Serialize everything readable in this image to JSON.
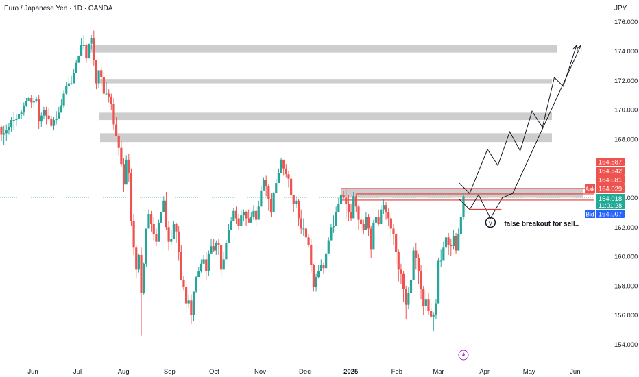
{
  "chart_data": {
    "type": "candlestick",
    "title": "Euro / Japanese Yen · 1D · OANDA",
    "currency": "JPY",
    "ylim": [
      153.5,
      177.5
    ],
    "y_ticks": [
      "176.000",
      "174.000",
      "172.000",
      "170.000",
      "168.000",
      "164.000",
      "162.000",
      "160.000",
      "158.000",
      "156.000",
      "154.000"
    ],
    "x_ticks": [
      "Jun",
      "Jul",
      "Aug",
      "Sep",
      "Oct",
      "Nov",
      "Dec",
      "2025",
      "Feb",
      "Mar",
      "Apr",
      "May",
      "Jun"
    ],
    "colors": {
      "up": "#26a69a",
      "down": "#ef5350",
      "zone": "#c9c9c9",
      "level": "#e53935",
      "ask": "#ef5350",
      "bid": "#2962ff",
      "last": "#22ab94"
    },
    "zones": [
      {
        "low": 173.9,
        "high": 174.4
      },
      {
        "low": 171.8,
        "high": 172.1
      },
      {
        "low": 169.3,
        "high": 169.8
      },
      {
        "low": 167.8,
        "high": 168.4
      },
      {
        "low": 164.0,
        "high": 164.6
      }
    ],
    "key_level": 164.4,
    "prices": {
      "ask_label": "Ask",
      "ask": "164.029",
      "bid_label": "Bid",
      "bid": "164.007",
      "last": "164.018",
      "countdown": "11:01:28",
      "levels": [
        "164.887",
        "164.542",
        "164.081"
      ]
    },
    "path_points": [
      [
        "2025-03-15",
        165.0
      ],
      [
        "2025-03-22",
        164.3
      ],
      [
        "2025-04-03",
        167.3
      ],
      [
        "2025-04-10",
        166.2
      ],
      [
        "2025-04-18",
        168.5
      ],
      [
        "2025-04-25",
        167.2
      ],
      [
        "2025-05-03",
        169.9
      ],
      [
        "2025-05-10",
        168.8
      ],
      [
        "2025-05-18",
        172.2
      ],
      [
        "2025-05-24",
        171.6
      ],
      [
        "2025-06-02",
        174.4
      ]
    ],
    "alt_path_points": [
      [
        "2025-03-15",
        163.9
      ],
      [
        "2025-03-22",
        163.2
      ],
      [
        "2025-03-28",
        164.2
      ],
      [
        "2025-04-05",
        162.6
      ],
      [
        "2025-04-13",
        164.0
      ],
      [
        "2025-04-20",
        164.3
      ],
      [
        "2025-06-05",
        174.4
      ]
    ],
    "annotation": "false breakout for sell..",
    "candles": [
      [
        168.8,
        168.3,
        168.9,
        167.9
      ],
      [
        168.3,
        168.4,
        168.9,
        167.6
      ],
      [
        168.4,
        168.6,
        169.0,
        167.9
      ],
      [
        168.6,
        168.8,
        169.1,
        168.3
      ],
      [
        168.8,
        169.3,
        169.5,
        168.5
      ],
      [
        169.3,
        169.3,
        169.8,
        168.6
      ],
      [
        169.3,
        169.4,
        169.7,
        168.9
      ],
      [
        169.4,
        169.7,
        170.3,
        169.2
      ],
      [
        169.7,
        169.8,
        170.0,
        169.4
      ],
      [
        169.8,
        170.3,
        170.5,
        169.6
      ],
      [
        170.3,
        170.6,
        170.8,
        170.2
      ],
      [
        170.6,
        170.8,
        170.9,
        170.6
      ],
      [
        170.8,
        170.5,
        171.0,
        170.1
      ],
      [
        170.5,
        170.6,
        170.9,
        170.1
      ],
      [
        170.6,
        170.7,
        170.9,
        170.5
      ],
      [
        170.7,
        169.2,
        171.0,
        168.7
      ],
      [
        169.2,
        169.6,
        169.8,
        168.8
      ],
      [
        169.6,
        170.0,
        170.2,
        169.4
      ],
      [
        170.0,
        169.6,
        170.2,
        169.0
      ],
      [
        169.6,
        169.4,
        170.1,
        169.3
      ],
      [
        169.4,
        168.9,
        169.6,
        168.8
      ],
      [
        168.9,
        169.3,
        169.5,
        168.6
      ],
      [
        169.3,
        169.4,
        169.9,
        169.0
      ],
      [
        169.4,
        169.8,
        170.2,
        169.5
      ],
      [
        169.8,
        170.3,
        170.7,
        170.0
      ],
      [
        170.3,
        171.1,
        171.3,
        170.1
      ],
      [
        171.1,
        171.6,
        171.9,
        171.0
      ],
      [
        171.6,
        171.8,
        172.2,
        171.6
      ],
      [
        171.8,
        171.8,
        172.3,
        171.7
      ],
      [
        171.8,
        172.5,
        172.8,
        172.5
      ],
      [
        172.5,
        173.2,
        173.4,
        172.9
      ],
      [
        173.2,
        173.7,
        173.7,
        173.2
      ],
      [
        173.7,
        174.4,
        174.9,
        173.9
      ],
      [
        174.4,
        174.4,
        175.1,
        174.1
      ],
      [
        174.4,
        173.5,
        174.5,
        173.2
      ],
      [
        173.5,
        174.5,
        174.5,
        174.3
      ],
      [
        174.5,
        174.9,
        175.1,
        174.1
      ],
      [
        174.9,
        173.4,
        175.4,
        173.0
      ],
      [
        173.4,
        171.8,
        173.3,
        171.4
      ],
      [
        171.8,
        172.7,
        172.6,
        171.5
      ],
      [
        172.7,
        172.2,
        172.9,
        171.6
      ],
      [
        172.2,
        171.1,
        172.6,
        171.0
      ],
      [
        171.1,
        171.1,
        171.9,
        171.0
      ],
      [
        171.1,
        170.9,
        171.4,
        170.5
      ],
      [
        170.9,
        170.4,
        171.1,
        170.0
      ],
      [
        170.4,
        169.0,
        170.8,
        168.6
      ],
      [
        169.0,
        168.2,
        169.5,
        168.2
      ],
      [
        168.2,
        167.4,
        168.3,
        166.9
      ],
      [
        167.4,
        166.3,
        167.9,
        166.1
      ],
      [
        166.3,
        164.9,
        166.7,
        164.4
      ],
      [
        164.9,
        166.6,
        166.9,
        166.1
      ],
      [
        166.6,
        165.7,
        167.0,
        165.1
      ],
      [
        165.7,
        162.4,
        166.0,
        162.1
      ],
      [
        162.4,
        160.6,
        162.9,
        160.1
      ],
      [
        160.6,
        159.1,
        160.8,
        158.5
      ],
      [
        159.1,
        160.1,
        160.2,
        158.9
      ],
      [
        160.1,
        157.5,
        160.6,
        154.6
      ],
      [
        157.5,
        159.5,
        159.6,
        157.4
      ],
      [
        159.5,
        161.9,
        161.9,
        159.3
      ],
      [
        161.9,
        162.9,
        163.2,
        162.0
      ],
      [
        162.9,
        162.2,
        163.1,
        161.7
      ],
      [
        162.2,
        161.5,
        162.7,
        161.1
      ],
      [
        161.5,
        161.0,
        161.9,
        160.7
      ],
      [
        161.0,
        162.3,
        162.5,
        161.1
      ],
      [
        162.3,
        163.0,
        163.0,
        162.5
      ],
      [
        163.0,
        163.8,
        164.1,
        163.6
      ],
      [
        163.8,
        162.0,
        164.4,
        161.8
      ],
      [
        162.0,
        161.0,
        162.4,
        160.4
      ],
      [
        161.0,
        161.2,
        161.8,
        160.8
      ],
      [
        161.2,
        162.2,
        162.4,
        161.5
      ],
      [
        162.2,
        161.7,
        162.3,
        160.9
      ],
      [
        161.7,
        160.3,
        162.1,
        159.7
      ],
      [
        160.3,
        158.4,
        160.8,
        158.4
      ],
      [
        158.4,
        157.9,
        158.7,
        157.7
      ],
      [
        157.9,
        156.8,
        158.3,
        156.2
      ],
      [
        156.8,
        157.0,
        157.4,
        156.5
      ],
      [
        157.0,
        156.0,
        157.4,
        155.4
      ],
      [
        156.0,
        157.6,
        157.6,
        155.6
      ],
      [
        157.6,
        158.6,
        158.7,
        157.5
      ],
      [
        158.6,
        159.0,
        159.3,
        158.6
      ],
      [
        159.0,
        159.5,
        159.8,
        158.9
      ],
      [
        159.5,
        159.8,
        160.1,
        159.5
      ],
      [
        159.8,
        159.0,
        160.3,
        158.4
      ],
      [
        159.0,
        160.2,
        160.4,
        158.7
      ],
      [
        160.2,
        160.7,
        161.2,
        160.2
      ],
      [
        160.7,
        160.4,
        161.2,
        160.3
      ],
      [
        160.4,
        160.9,
        161.1,
        160.1
      ],
      [
        160.9,
        160.8,
        161.2,
        160.1
      ],
      [
        160.8,
        159.1,
        160.8,
        158.6
      ],
      [
        159.1,
        159.8,
        160.3,
        159.2
      ],
      [
        159.8,
        160.9,
        161.1,
        160.2
      ],
      [
        160.9,
        161.8,
        162.2,
        161.4
      ],
      [
        161.8,
        162.4,
        162.7,
        162.1
      ],
      [
        162.4,
        163.1,
        163.3,
        162.6
      ],
      [
        163.1,
        162.6,
        163.4,
        162.2
      ],
      [
        162.6,
        162.1,
        162.9,
        161.8
      ],
      [
        162.1,
        162.8,
        163.2,
        162.7
      ],
      [
        162.8,
        163.0,
        163.2,
        162.4
      ],
      [
        163.0,
        162.6,
        163.1,
        162.1
      ],
      [
        162.6,
        162.3,
        163.2,
        162.4
      ],
      [
        162.3,
        162.7,
        163.0,
        162.3
      ],
      [
        162.7,
        163.1,
        163.5,
        162.5
      ],
      [
        163.1,
        162.5,
        163.4,
        162.1
      ],
      [
        162.5,
        163.4,
        163.8,
        163.2
      ],
      [
        163.4,
        164.5,
        164.8,
        164.0
      ],
      [
        164.5,
        165.2,
        165.4,
        164.9
      ],
      [
        165.2,
        164.8,
        165.5,
        164.1
      ],
      [
        164.8,
        163.9,
        164.9,
        163.1
      ],
      [
        163.9,
        163.0,
        164.3,
        162.7
      ],
      [
        163.0,
        164.3,
        164.4,
        163.0
      ],
      [
        164.3,
        165.0,
        165.3,
        164.6
      ],
      [
        165.0,
        165.7,
        166.0,
        165.1
      ],
      [
        165.7,
        166.6,
        166.7,
        165.9
      ],
      [
        166.6,
        166.0,
        166.6,
        165.5
      ],
      [
        166.0,
        165.6,
        166.3,
        165.4
      ],
      [
        165.6,
        165.3,
        165.8,
        164.7
      ],
      [
        165.3,
        164.2,
        165.4,
        163.9
      ],
      [
        164.2,
        163.6,
        164.2,
        163.0
      ],
      [
        163.6,
        163.8,
        164.1,
        163.3
      ],
      [
        163.8,
        162.6,
        163.9,
        162.1
      ],
      [
        162.6,
        161.9,
        163.2,
        161.5
      ],
      [
        161.9,
        161.9,
        162.6,
        161.4
      ],
      [
        161.9,
        161.3,
        162.1,
        160.8
      ],
      [
        161.3,
        160.8,
        161.5,
        160.6
      ],
      [
        160.8,
        159.4,
        161.2,
        158.9
      ],
      [
        159.4,
        157.9,
        159.5,
        157.6
      ],
      [
        157.9,
        158.6,
        158.8,
        157.6
      ],
      [
        158.6,
        159.0,
        159.4,
        158.5
      ],
      [
        159.0,
        159.4,
        159.8,
        159.1
      ],
      [
        159.4,
        159.2,
        159.6,
        158.8
      ],
      [
        159.2,
        160.2,
        160.4,
        159.5
      ],
      [
        160.2,
        161.1,
        161.3,
        160.3
      ],
      [
        161.1,
        162.0,
        162.2,
        161.1
      ],
      [
        162.0,
        162.1,
        162.8,
        161.6
      ],
      [
        162.1,
        163.0,
        163.4,
        162.5
      ],
      [
        163.0,
        163.6,
        164.0,
        163.0
      ],
      [
        163.6,
        164.2,
        164.7,
        164.4
      ],
      [
        164.2,
        164.0,
        164.5,
        163.9
      ],
      [
        164.0,
        163.6,
        164.6,
        162.6
      ],
      [
        163.6,
        163.0,
        164.2,
        162.4
      ],
      [
        163.0,
        162.6,
        163.6,
        162.4
      ],
      [
        162.6,
        164.1,
        164.4,
        162.7
      ],
      [
        164.1,
        163.4,
        164.3,
        163.0
      ],
      [
        163.4,
        162.5,
        163.5,
        161.8
      ],
      [
        162.5,
        162.2,
        162.8,
        161.7
      ],
      [
        162.2,
        161.8,
        162.5,
        161.5
      ],
      [
        161.8,
        162.7,
        163.0,
        162.1
      ],
      [
        162.7,
        161.9,
        162.9,
        161.4
      ],
      [
        161.9,
        160.5,
        162.1,
        159.9
      ],
      [
        160.5,
        162.3,
        162.5,
        160.9
      ],
      [
        162.3,
        162.7,
        163.0,
        162.4
      ],
      [
        162.7,
        162.2,
        163.2,
        162.1
      ],
      [
        162.2,
        163.2,
        163.5,
        162.6
      ],
      [
        163.2,
        163.5,
        163.9,
        162.9
      ],
      [
        163.5,
        163.0,
        163.7,
        162.5
      ],
      [
        163.0,
        162.6,
        163.3,
        162.1
      ],
      [
        162.6,
        161.9,
        162.8,
        161.3
      ],
      [
        161.9,
        161.5,
        162.2,
        160.8
      ],
      [
        161.5,
        160.3,
        161.6,
        159.5
      ],
      [
        160.3,
        159.1,
        160.5,
        158.3
      ],
      [
        159.1,
        158.8,
        159.5,
        158.1
      ],
      [
        158.8,
        157.8,
        159.0,
        156.9
      ],
      [
        157.8,
        156.7,
        158.0,
        155.7
      ],
      [
        156.7,
        157.5,
        157.9,
        156.4
      ],
      [
        157.5,
        158.4,
        158.8,
        157.7
      ],
      [
        158.4,
        160.4,
        160.6,
        158.6
      ],
      [
        160.4,
        159.9,
        160.9,
        159.1
      ],
      [
        159.9,
        159.0,
        160.2,
        158.1
      ],
      [
        159.0,
        157.8,
        159.4,
        157.1
      ],
      [
        157.8,
        156.6,
        158.0,
        156.0
      ],
      [
        156.6,
        157.1,
        157.6,
        156.3
      ],
      [
        157.1,
        156.3,
        157.5,
        156.0
      ],
      [
        156.3,
        155.9,
        156.8,
        155.8
      ],
      [
        155.9,
        156.0,
        156.2,
        154.9
      ],
      [
        156.0,
        156.8,
        157.1,
        155.7
      ],
      [
        156.8,
        159.7,
        159.9,
        156.8
      ],
      [
        159.7,
        159.7,
        160.5,
        159.3
      ],
      [
        159.7,
        160.6,
        161.0,
        159.8
      ],
      [
        160.6,
        161.3,
        161.6,
        159.9
      ],
      [
        161.3,
        160.8,
        161.6,
        160.1
      ],
      [
        160.8,
        160.7,
        161.2,
        160.0
      ],
      [
        160.7,
        161.4,
        161.8,
        160.5
      ],
      [
        161.4,
        160.4,
        161.6,
        160.2
      ],
      [
        160.4,
        161.5,
        161.9,
        160.7
      ],
      [
        161.5,
        162.7,
        162.9,
        161.4
      ],
      [
        162.7,
        164.1,
        164.3,
        162.5
      ]
    ]
  }
}
